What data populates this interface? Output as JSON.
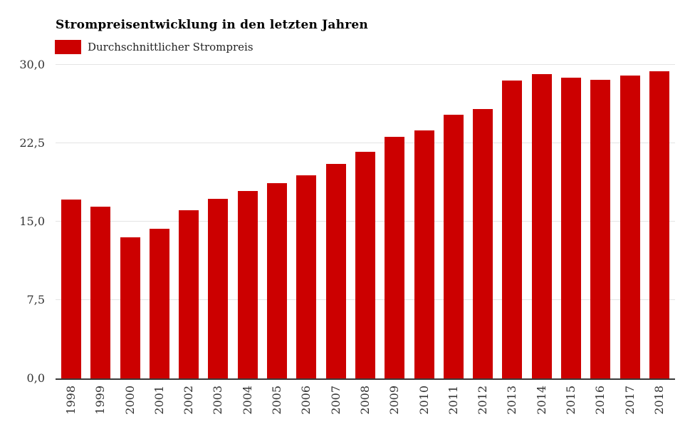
{
  "chart_data": {
    "type": "bar",
    "title": "Strompreisentwicklung in den letzten Jahren",
    "legend_entries": [
      {
        "label": "Durchschnittlicher Strompreis",
        "color": "#cc0000"
      }
    ],
    "legend_position": "top-left",
    "categories": [
      "1998",
      "1999",
      "2000",
      "2001",
      "2002",
      "2003",
      "2004",
      "2005",
      "2006",
      "2007",
      "2008",
      "2009",
      "2010",
      "2011",
      "2012",
      "2013",
      "2014",
      "2015",
      "2016",
      "2017",
      "2018"
    ],
    "values": [
      17.1,
      16.4,
      13.5,
      14.3,
      16.1,
      17.2,
      17.9,
      18.7,
      19.4,
      20.5,
      21.7,
      23.1,
      23.7,
      25.2,
      25.8,
      28.5,
      29.1,
      28.8,
      28.6,
      29.0,
      29.4
    ],
    "xlabel": "",
    "ylabel": "",
    "ylim": [
      0,
      30
    ],
    "yticks": [
      {
        "value": 0,
        "label": "0,0"
      },
      {
        "value": 7.5,
        "label": "7,5"
      },
      {
        "value": 15,
        "label": "15,0"
      },
      {
        "value": 22.5,
        "label": "22,5"
      },
      {
        "value": 30,
        "label": "30,0"
      }
    ],
    "grid": true
  },
  "colors": {
    "bar": "#cc0000",
    "gridline": "#e4e4e4",
    "axis_line": "#3a3a3a",
    "tick_text": "#333333",
    "title_text": "#000000"
  }
}
